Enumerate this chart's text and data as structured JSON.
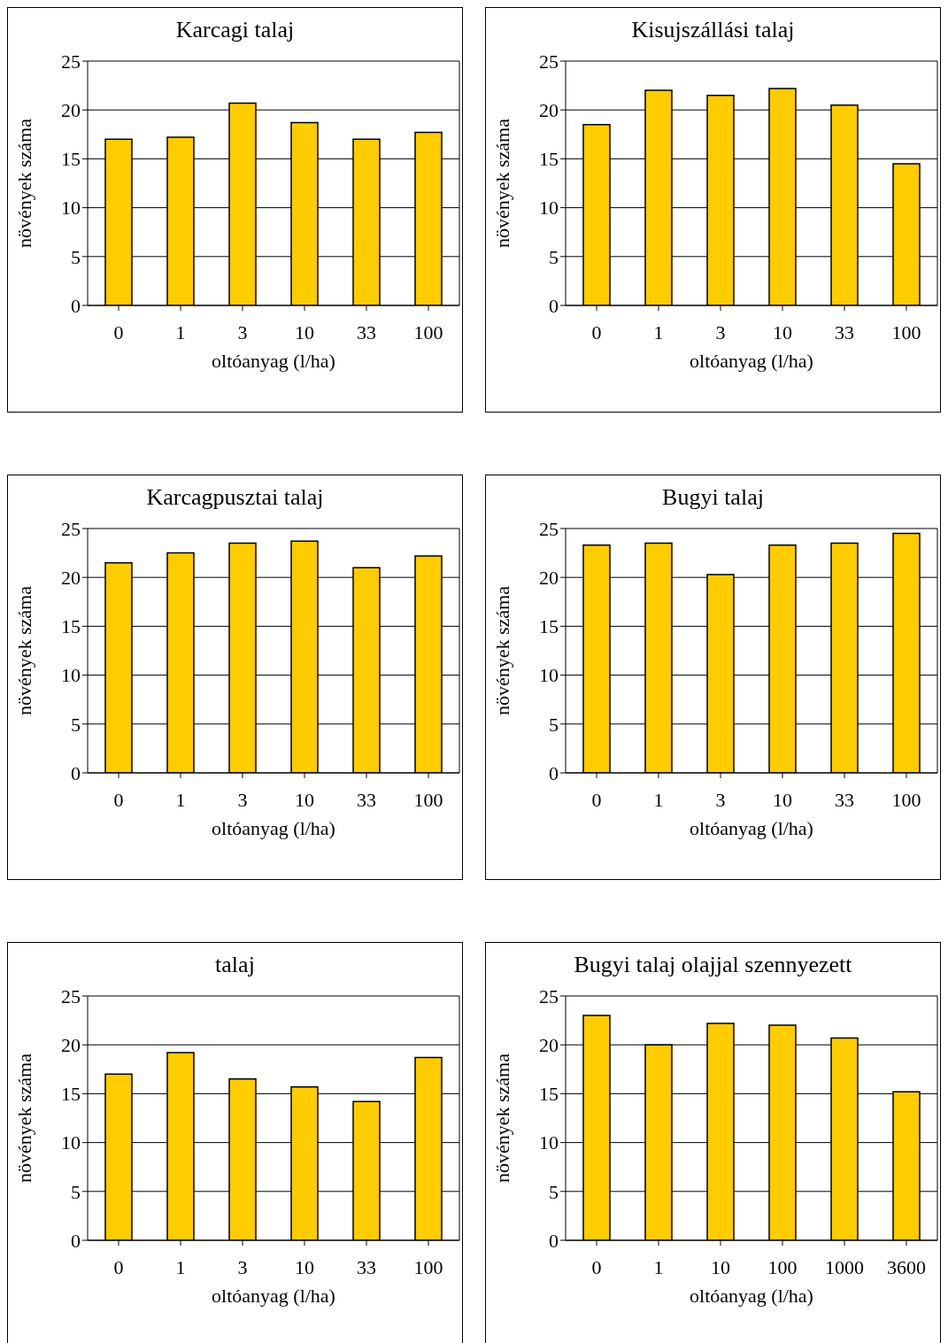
{
  "chart_data": [
    {
      "type": "bar",
      "title": "Karcagi talaj",
      "xlabel": "oltóanyag (l/ha)",
      "ylabel": "növények száma",
      "categories": [
        "0",
        "1",
        "3",
        "10",
        "33",
        "100"
      ],
      "values": [
        17,
        17.2,
        20.7,
        18.7,
        17,
        17.7
      ],
      "color": "#ffcc00",
      "ylim": [
        0,
        25
      ],
      "yticks": [
        0,
        5,
        10,
        15,
        20,
        25
      ],
      "grid": "y"
    },
    {
      "type": "bar",
      "title": "Kisujszállási talaj",
      "xlabel": "oltóanyag (l/ha)",
      "ylabel": "növények száma",
      "categories": [
        "0",
        "1",
        "3",
        "10",
        "33",
        "100"
      ],
      "values": [
        18.5,
        22,
        21.5,
        22.2,
        20.5,
        14.5
      ],
      "color": "#ffcc00",
      "ylim": [
        0,
        25
      ],
      "yticks": [
        0,
        5,
        10,
        15,
        20,
        25
      ],
      "grid": "y"
    },
    {
      "type": "bar",
      "title": "Karcagpusztai talaj",
      "xlabel": "oltóanyag (l/ha)",
      "ylabel": "növények száma",
      "categories": [
        "0",
        "1",
        "3",
        "10",
        "33",
        "100"
      ],
      "values": [
        21.5,
        22.5,
        23.5,
        23.7,
        21,
        22.2
      ],
      "color": "#ffcc00",
      "ylim": [
        0,
        25
      ],
      "yticks": [
        0,
        5,
        10,
        15,
        20,
        25
      ],
      "grid": "y"
    },
    {
      "type": "bar",
      "title": "Bugyi talaj",
      "xlabel": "oltóanyag (l/ha)",
      "ylabel": "növények száma",
      "categories": [
        "0",
        "1",
        "3",
        "10",
        "33",
        "100"
      ],
      "values": [
        23.3,
        23.5,
        20.3,
        23.3,
        23.5,
        24.5
      ],
      "color": "#ffcc00",
      "ylim": [
        0,
        25
      ],
      "yticks": [
        0,
        5,
        10,
        15,
        20,
        25
      ],
      "grid": "y"
    },
    {
      "type": "bar",
      "title": "talaj",
      "xlabel": "oltóanyag (l/ha)",
      "ylabel": "növények száma",
      "categories": [
        "0",
        "1",
        "3",
        "10",
        "33",
        "100"
      ],
      "values": [
        17,
        19.2,
        16.5,
        15.7,
        14.2,
        18.7
      ],
      "color": "#ffcc00",
      "ylim": [
        0,
        25
      ],
      "yticks": [
        0,
        5,
        10,
        15,
        20,
        25
      ],
      "grid": "y"
    },
    {
      "type": "bar",
      "title": "Bugyi talaj olajjal szennyezett",
      "xlabel": "oltóanyag (l/ha)",
      "ylabel": "növények száma",
      "categories": [
        "0",
        "1",
        "10",
        "100",
        "1000",
        "3600"
      ],
      "values": [
        23,
        20,
        22.2,
        22,
        20.7,
        15.2
      ],
      "color": "#ffcc00",
      "ylim": [
        0,
        25
      ],
      "yticks": [
        0,
        5,
        10,
        15,
        20,
        25
      ],
      "grid": "y"
    }
  ]
}
